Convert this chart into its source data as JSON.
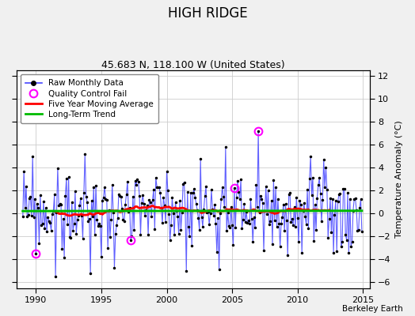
{
  "title": "HIGH RIDGE",
  "subtitle": "45.683 N, 118.100 W (United States)",
  "ylabel": "Temperature Anomaly (°C)",
  "credit": "Berkeley Earth",
  "xlim": [
    1988.5,
    2015.5
  ],
  "ylim": [
    -6.5,
    12.5
  ],
  "yticks": [
    -6,
    -4,
    -2,
    0,
    2,
    4,
    6,
    8,
    10,
    12
  ],
  "xticks": [
    1990,
    1995,
    2000,
    2005,
    2010,
    2015
  ],
  "bg_color": "#f0f0f0",
  "plot_bg": "#ffffff",
  "raw_color": "#4444ff",
  "raw_marker_color": "#000000",
  "qc_color": "#ff00ff",
  "moving_avg_color": "#ff0000",
  "trend_color": "#00bb00",
  "grid_color": "#cccccc",
  "title_fontsize": 12,
  "subtitle_fontsize": 9,
  "tick_fontsize": 8,
  "ylabel_fontsize": 8
}
